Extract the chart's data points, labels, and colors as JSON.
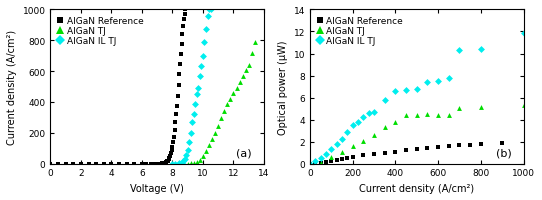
{
  "panel_a": {
    "title": "(a)",
    "xlabel": "Voltage (V)",
    "ylabel": "Current density (A/cm²)",
    "xlim": [
      0,
      14
    ],
    "ylim": [
      0,
      1000
    ],
    "xticks": [
      0,
      2,
      4,
      6,
      8,
      10,
      12,
      14
    ],
    "yticks": [
      0,
      200,
      400,
      600,
      800,
      1000
    ],
    "ref_V": [
      0.0,
      0.5,
      1.0,
      1.5,
      2.0,
      2.5,
      3.0,
      3.5,
      4.0,
      4.5,
      5.0,
      5.5,
      6.0,
      6.3,
      6.6,
      6.8,
      7.0,
      7.1,
      7.2,
      7.3,
      7.4,
      7.5,
      7.55,
      7.6,
      7.65,
      7.7,
      7.75,
      7.8,
      7.85,
      7.9,
      7.95,
      8.0,
      8.05,
      8.1,
      8.15,
      8.2,
      8.25,
      8.3,
      8.35,
      8.4,
      8.45,
      8.5,
      8.55,
      8.6,
      8.65,
      8.7,
      8.75,
      8.8,
      8.85
    ],
    "ref_J": [
      0.0,
      0.0,
      0.0,
      0.0,
      0.0,
      0.0,
      0.0,
      0.0,
      0.0,
      0.0,
      0.0,
      0.0,
      0.0,
      0.0,
      0.0,
      0.0,
      0.0,
      0.0,
      0.5,
      1.0,
      2.0,
      4.0,
      7.0,
      10.0,
      14.0,
      20.0,
      28.0,
      38.0,
      52.0,
      68.0,
      88.0,
      110.0,
      140.0,
      175.0,
      215.0,
      270.0,
      320.0,
      375.0,
      440.0,
      510.0,
      580.0,
      645.0,
      710.0,
      775.0,
      840.0,
      890.0,
      940.0,
      970.0,
      1000.0
    ],
    "TJ_V": [
      8.5,
      9.0,
      9.2,
      9.4,
      9.6,
      9.8,
      10.0,
      10.2,
      10.4,
      10.6,
      10.8,
      11.0,
      11.2,
      11.4,
      11.6,
      11.8,
      12.0,
      12.2,
      12.4,
      12.6,
      12.8,
      13.0,
      13.2,
      13.4
    ],
    "TJ_J": [
      0.0,
      0.5,
      2.0,
      5.0,
      12.0,
      25.0,
      50.0,
      80.0,
      120.0,
      160.0,
      200.0,
      245.0,
      295.0,
      340.0,
      385.0,
      420.0,
      460.0,
      490.0,
      530.0,
      570.0,
      605.0,
      640.0,
      720.0,
      790.0
    ],
    "ILTJ_V": [
      8.0,
      8.2,
      8.4,
      8.6,
      8.7,
      8.8,
      8.9,
      9.0,
      9.1,
      9.2,
      9.3,
      9.4,
      9.5,
      9.6,
      9.7,
      9.8,
      9.9,
      10.0,
      10.1,
      10.2,
      10.3,
      10.4,
      10.5
    ],
    "ILTJ_J": [
      0.0,
      0.5,
      2.0,
      6.0,
      15.0,
      30.0,
      55.0,
      90.0,
      140.0,
      200.0,
      270.0,
      320.0,
      390.0,
      450.0,
      490.0,
      570.0,
      630.0,
      700.0,
      790.0,
      870.0,
      960.0,
      1000.0,
      1000.0
    ],
    "ref_color": "#000000",
    "TJ_color": "#00dd00",
    "ILTJ_color": "#00eeee",
    "ref_marker": "s",
    "TJ_marker": "^",
    "ILTJ_marker": "D"
  },
  "panel_b": {
    "title": "(b)",
    "xlabel": "Current density (A/cm²)",
    "ylabel": "Optical power (μW)",
    "xlim": [
      0,
      1000
    ],
    "ylim": [
      0,
      14
    ],
    "xticks": [
      0,
      200,
      400,
      600,
      800,
      1000
    ],
    "yticks": [
      0,
      2,
      4,
      6,
      8,
      10,
      12,
      14
    ],
    "ref_J": [
      0,
      25,
      50,
      75,
      100,
      125,
      150,
      175,
      200,
      250,
      300,
      350,
      400,
      450,
      500,
      550,
      600,
      650,
      700,
      750,
      800,
      900
    ],
    "ref_P": [
      0,
      0.05,
      0.1,
      0.15,
      0.25,
      0.32,
      0.4,
      0.5,
      0.6,
      0.75,
      0.85,
      1.0,
      1.1,
      1.25,
      1.35,
      1.45,
      1.55,
      1.6,
      1.65,
      1.7,
      1.8,
      1.85
    ],
    "TJ_J": [
      0,
      50,
      100,
      150,
      200,
      250,
      300,
      350,
      400,
      450,
      500,
      550,
      600,
      650,
      700,
      800,
      1000
    ],
    "TJ_P": [
      0,
      0.1,
      0.6,
      1.1,
      1.6,
      2.1,
      2.6,
      3.3,
      3.8,
      4.4,
      4.4,
      4.5,
      4.45,
      4.45,
      5.05,
      5.1,
      5.3
    ],
    "ILTJ_J": [
      0,
      25,
      50,
      75,
      100,
      125,
      150,
      175,
      200,
      225,
      250,
      275,
      300,
      350,
      400,
      450,
      500,
      550,
      600,
      650,
      700,
      800,
      1000
    ],
    "ILTJ_P": [
      0,
      0.2,
      0.5,
      0.9,
      1.3,
      1.8,
      2.2,
      2.9,
      3.5,
      3.8,
      4.2,
      4.6,
      4.7,
      5.8,
      6.6,
      6.7,
      6.8,
      7.4,
      7.5,
      7.8,
      10.3,
      10.4,
      11.9
    ],
    "ref_color": "#000000",
    "TJ_color": "#00dd00",
    "ILTJ_color": "#00eeee",
    "ref_marker": "s",
    "TJ_marker": "^",
    "ILTJ_marker": "D"
  },
  "legend_labels": [
    "AlGaN Reference",
    "AlGaN TJ",
    "AlGaN IL TJ"
  ],
  "background_color": "#ffffff",
  "markersize": 3,
  "fontsize_label": 7,
  "fontsize_tick": 6.5,
  "fontsize_legend": 6.5,
  "fontsize_annot": 8
}
